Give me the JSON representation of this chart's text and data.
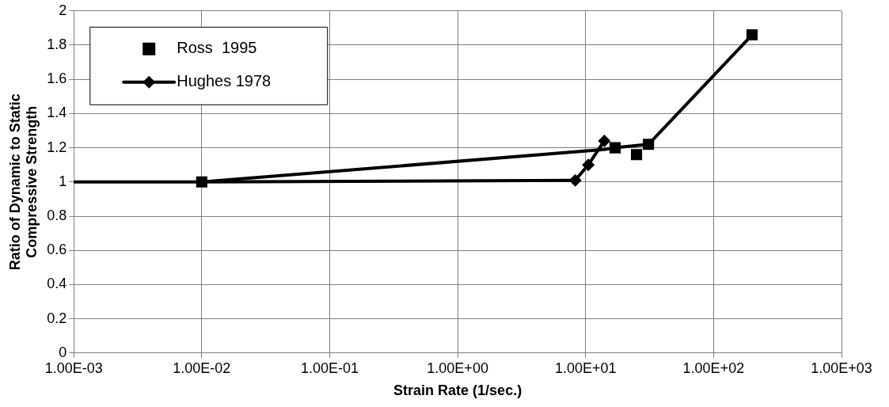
{
  "chart_data": {
    "type": "line",
    "xlabel": "Strain Rate (1/sec.)",
    "ylabel": "Ratio of Dynamic to Static Compressive Strength",
    "log": "x",
    "xlim": [
      0.001,
      1000
    ],
    "xticks": [
      {
        "value": 0.001,
        "label": "1.00E-03"
      },
      {
        "value": 0.01,
        "label": "1.00E-02"
      },
      {
        "value": 0.1,
        "label": "1.00E-01"
      },
      {
        "value": 1,
        "label": "1.00E+00"
      },
      {
        "value": 10,
        "label": "1.00E+01"
      },
      {
        "value": 100,
        "label": "1.00E+02"
      },
      {
        "value": 1000,
        "label": "1.00E+03"
      }
    ],
    "ylim": [
      0,
      2
    ],
    "yticks": [
      0,
      0.2,
      0.4,
      0.6,
      0.8,
      1,
      1.2,
      1.4,
      1.6,
      1.8,
      2
    ],
    "grid": true,
    "legend": "top left",
    "line_style": "solid",
    "series": [
      {
        "name": "Ross  1995",
        "type": "scatter",
        "marker": "square",
        "color": "#000000",
        "x": [
          0.01,
          17,
          25,
          31,
          200
        ],
        "values": [
          1,
          1.2,
          1.16,
          1.22,
          1.86
        ]
      },
      {
        "name": "Hughes 1978",
        "marker": "diamond",
        "color": "#000000",
        "x": [
          8.3,
          10.5,
          14
        ],
        "values": [
          1.01,
          1.1,
          1.24
        ]
      },
      {
        "type": "line",
        "marker": "none",
        "color": "#000000",
        "x": [
          0.001,
          0.01,
          8.3
        ],
        "values": [
          1,
          1,
          1.01
        ]
      },
      {
        "type": "line",
        "marker": "none",
        "color": "#000000",
        "x": [
          0.01,
          14,
          17,
          31,
          200
        ],
        "values": [
          1,
          1.19,
          1.2,
          1.22,
          1.86
        ]
      }
    ]
  }
}
